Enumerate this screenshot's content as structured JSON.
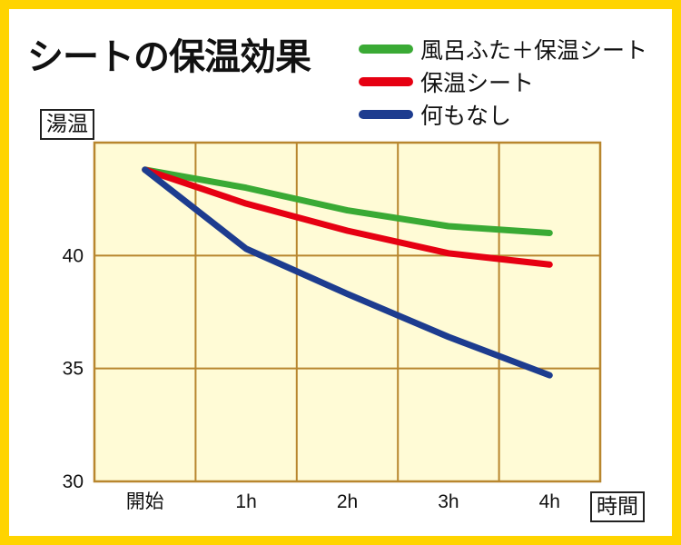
{
  "chart_data": {
    "type": "line",
    "title": "シートの保温効果",
    "ylabel": "湯温",
    "xlabel": "時間",
    "categories": [
      "開始",
      "1h",
      "2h",
      "3h",
      "4h"
    ],
    "ylim": [
      30,
      45
    ],
    "yticks": [
      30,
      35,
      40
    ],
    "grid": true,
    "legend_position": "top-right",
    "series": [
      {
        "name": "風呂ふた＋保温シート",
        "color": "#3aaa35",
        "values": [
          43.8,
          43.0,
          42.0,
          41.3,
          41.0
        ]
      },
      {
        "name": "保温シート",
        "color": "#e60012",
        "values": [
          43.8,
          42.3,
          41.1,
          40.1,
          39.6
        ]
      },
      {
        "name": "何もなし",
        "color": "#1d3c8f",
        "values": [
          43.8,
          40.3,
          38.3,
          36.4,
          34.7
        ]
      }
    ]
  }
}
